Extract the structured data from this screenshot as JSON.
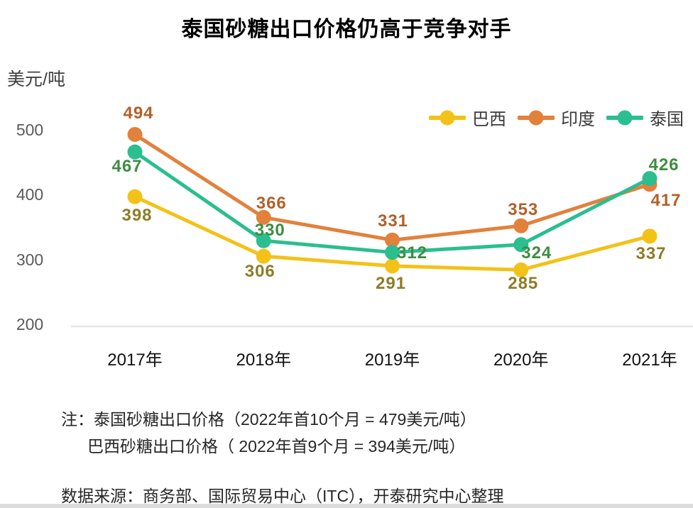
{
  "title": "泰国砂糖出口价格仍高于竞争对手",
  "chart_data": {
    "type": "line",
    "title": "泰国砂糖出口价格仍高于竞争对手",
    "ylabel_unit": "美元/吨",
    "categories": [
      "2017年",
      "2018年",
      "2019年",
      "2020年",
      "2021年"
    ],
    "y_ticks": [
      500,
      400,
      300,
      200
    ],
    "ylim": [
      200,
      520
    ],
    "grid": false,
    "legend_position": "top-right",
    "axis_line_color": "#e6e6e6",
    "series": [
      {
        "name": "巴西",
        "color": "#F3C218",
        "label_color": "#8C7D28",
        "values": [
          398,
          306,
          291,
          285,
          337
        ],
        "label_offsets": [
          [
            3,
            27
          ],
          [
            -5,
            22
          ],
          [
            -2,
            25
          ],
          [
            3,
            20
          ],
          [
            2,
            25
          ]
        ]
      },
      {
        "name": "印度",
        "color": "#E2813C",
        "label_color": "#B2602C",
        "values": [
          494,
          366,
          331,
          353,
          417
        ],
        "label_offsets": [
          [
            5,
            -29
          ],
          [
            11,
            -19
          ],
          [
            1,
            -26
          ],
          [
            3,
            -22
          ],
          [
            23,
            23
          ]
        ]
      },
      {
        "name": "泰国",
        "color": "#2BBE8F",
        "label_color": "#3E8D41",
        "values": [
          467,
          330,
          312,
          324,
          426
        ],
        "label_offsets": [
          [
            -11,
            21
          ],
          [
            9,
            -14
          ],
          [
            28,
            1
          ],
          [
            22,
            12
          ],
          [
            20,
            -19
          ]
        ]
      }
    ]
  },
  "notes": {
    "line1": "注：泰国砂糖出口价格（2022年首10个月 = 479美元/吨）",
    "line2": "巴西砂糖出口价格（ 2022年首9个月 = 394美元/吨）",
    "source": "数据来源：商务部、国际贸易中心（ITC），开泰研究中心整理"
  }
}
